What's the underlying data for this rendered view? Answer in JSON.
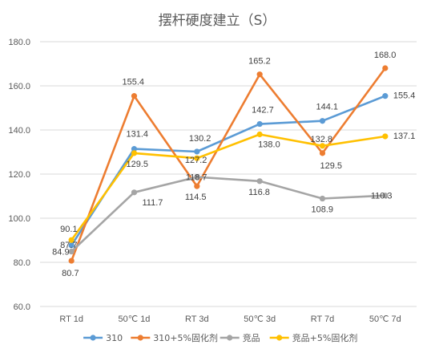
{
  "chart_data": {
    "type": "line",
    "title": "摆杆硬度建立（S）",
    "xlabel": "",
    "ylabel": "",
    "categories": [
      "RT 1d",
      "50℃ 1d",
      "RT 3d",
      "50℃ 3d",
      "RT 7d",
      "50℃ 7d"
    ],
    "ylim": [
      60,
      180
    ],
    "yticks": [
      "60.0",
      "80.0",
      "100.0",
      "120.0",
      "140.0",
      "160.0",
      "180.0"
    ],
    "grid": true,
    "legend_position": "bottom",
    "series": [
      {
        "name": "310",
        "color": "#5B9BD5",
        "values": [
          87.7,
          131.4,
          130.2,
          142.7,
          144.1,
          155.4
        ],
        "labels": [
          "87.7",
          "131.4",
          "130.2",
          "142.7",
          "144.1",
          "155.4"
        ]
      },
      {
        "name": "310+5%固化剂",
        "color": "#ED7D31",
        "values": [
          80.7,
          155.4,
          114.5,
          165.2,
          129.5,
          168.0
        ],
        "labels": [
          "80.7",
          "155.4",
          "114.5",
          "165.2",
          "129.5",
          "168.0"
        ]
      },
      {
        "name": "竞品",
        "color": "#A5A5A5",
        "values": [
          84.9,
          111.7,
          118.7,
          116.8,
          108.9,
          110.3
        ],
        "labels": [
          "84.9",
          "111.7",
          "118.7",
          "116.8",
          "108.9",
          "110.3"
        ]
      },
      {
        "name": "竞品+5%固化剂",
        "color": "#FFC000",
        "values": [
          90.1,
          129.5,
          127.2,
          138.0,
          132.8,
          137.1
        ],
        "labels": [
          "90.1",
          "129.5",
          "127.2",
          "138.0",
          "132.8",
          "137.1"
        ]
      }
    ]
  }
}
